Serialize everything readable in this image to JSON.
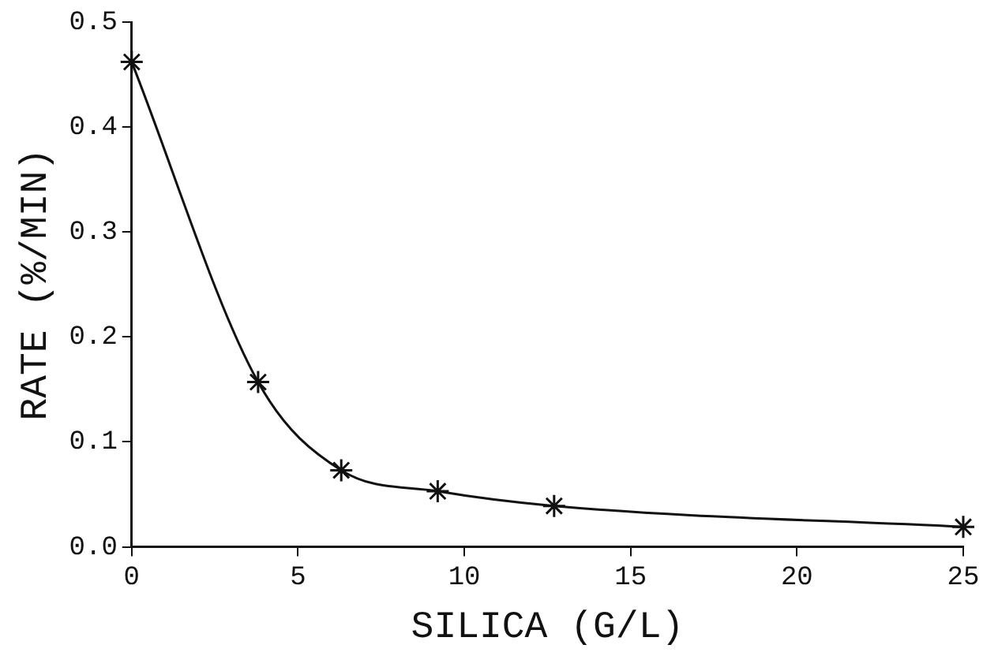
{
  "chart_data": {
    "type": "line",
    "xlabel": "SILICA (G/L)",
    "ylabel": "RATE (%/MIN)",
    "x": [
      0,
      3.8,
      6.3,
      9.2,
      12.7,
      25
    ],
    "series": [
      {
        "color": "#111111",
        "values": [
          0.462,
          0.157,
          0.073,
          0.053,
          0.039,
          0.019
        ]
      }
    ],
    "xlim": [
      0,
      25
    ],
    "xticks": [
      0,
      5,
      10,
      15,
      20,
      25
    ],
    "ylim": [
      0,
      0.5
    ],
    "yticks": [
      {
        "value": 0,
        "label": "0.0"
      },
      0.1,
      0.2,
      0.3,
      0.4,
      0.5
    ],
    "marker": "cross",
    "line_style": "solid",
    "grid": false,
    "legend": false
  }
}
